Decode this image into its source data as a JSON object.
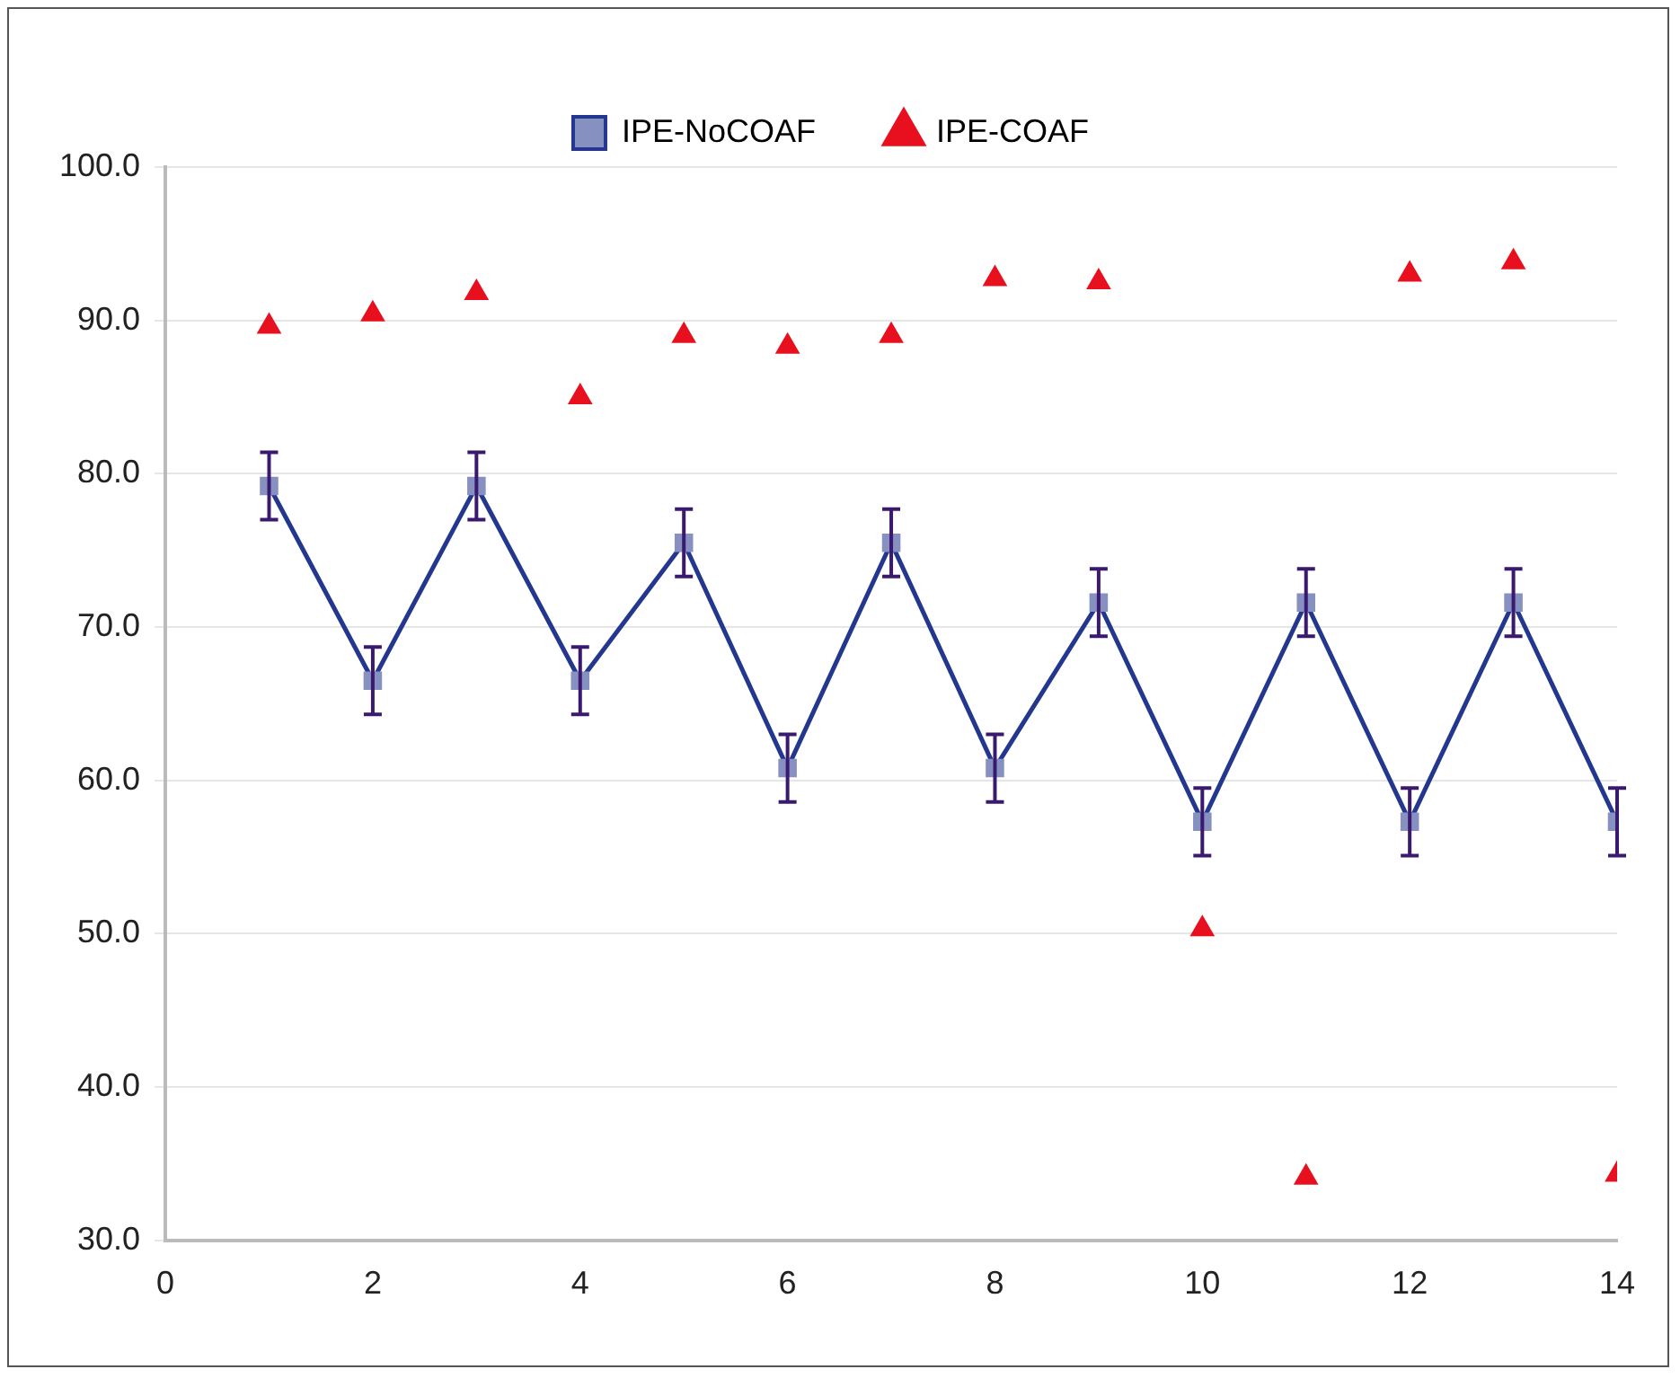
{
  "chart_data": {
    "type": "line",
    "x": [
      1,
      2,
      3,
      4,
      5,
      6,
      7,
      8,
      9,
      10,
      11,
      12,
      13,
      14
    ],
    "series": [
      {
        "name": "IPE-NoCOAF",
        "type": "line",
        "color": "#24378f",
        "marker": "square",
        "line_style": "solid",
        "values": [
          79.2,
          66.5,
          79.2,
          66.5,
          75.5,
          60.8,
          75.5,
          60.8,
          71.6,
          57.3,
          71.6,
          57.3,
          71.6,
          57.3
        ],
        "errors": [
          2.2,
          2.2,
          2.2,
          2.2,
          2.2,
          2.2,
          2.2,
          2.2,
          2.2,
          2.2,
          2.2,
          2.2,
          2.2,
          2.2
        ]
      },
      {
        "name": "IPE-COAF",
        "type": "scatter",
        "color": "#e8101e",
        "marker": "triangle",
        "values": [
          89.6,
          90.4,
          91.8,
          85.0,
          89.0,
          88.3,
          89.0,
          92.7,
          92.5,
          50.3,
          34.1,
          93.0,
          93.8,
          34.3
        ]
      }
    ],
    "xlim": [
      0,
      14
    ],
    "xticks": [
      0,
      2,
      4,
      6,
      8,
      10,
      12,
      14
    ],
    "ylim": [
      30,
      100
    ],
    "yticks": [
      {
        "value": 30,
        "label": "30.0"
      },
      {
        "value": 40,
        "label": "40.0"
      },
      {
        "value": 50,
        "label": "50.0"
      },
      {
        "value": 60,
        "label": "60.0"
      },
      {
        "value": 70,
        "label": "70.0"
      },
      {
        "value": 80,
        "label": "80.0"
      },
      {
        "value": 90,
        "label": "90.0"
      },
      {
        "value": 100,
        "label": "100.0"
      }
    ],
    "grid": "y",
    "legend": "top"
  }
}
